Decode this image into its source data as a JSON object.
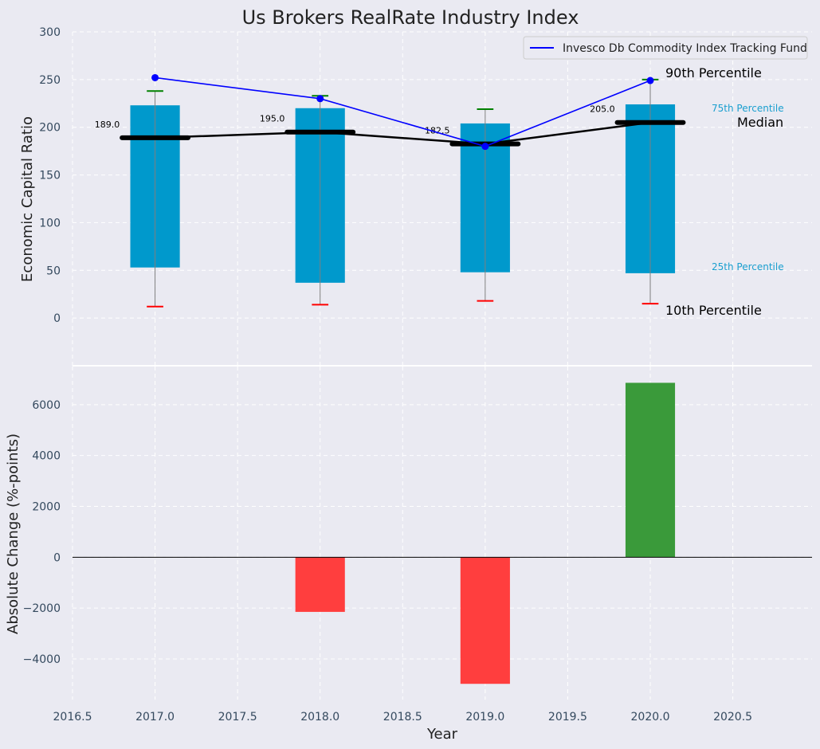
{
  "chart_data": {
    "type": "bar",
    "title": "Us Brokers RealRate Industry Index",
    "xlabel": "Year",
    "x_ticks": [
      "2016.5",
      "2017.0",
      "2017.5",
      "2018.0",
      "2018.5",
      "2019.0",
      "2019.5",
      "2020.0",
      "2020.5"
    ],
    "x_tick_values": [
      2016.5,
      2017.0,
      2017.5,
      2018.0,
      2018.5,
      2019.0,
      2019.5,
      2020.0,
      2020.5
    ],
    "xlim": [
      2016.5,
      2020.98
    ],
    "grid": true,
    "top_panel": {
      "ylabel": "Economic Capital Ratio",
      "ylim": [
        -50,
        300
      ],
      "y_ticks": [
        "0",
        "50",
        "100",
        "150",
        "200",
        "250",
        "300"
      ],
      "y_tick_values": [
        0,
        50,
        100,
        150,
        200,
        250,
        300
      ],
      "years": [
        2017,
        2018,
        2019,
        2020
      ],
      "p10": [
        12,
        14,
        18,
        15
      ],
      "p25": [
        53,
        37,
        48,
        47
      ],
      "median": [
        189.0,
        195.0,
        182.5,
        205.0
      ],
      "median_labels": [
        "189.0",
        "195.0",
        "182.5",
        "205.0"
      ],
      "p75": [
        223,
        220,
        204,
        224
      ],
      "p90": [
        238,
        233,
        219,
        250
      ],
      "fund_series": {
        "name": "Invesco Db Commodity Index Tracking Fund",
        "values": [
          252,
          230,
          180,
          249
        ]
      },
      "annotations": {
        "p90": "90th Percentile",
        "p75": "75th Percentile",
        "median": "Median",
        "p25": "25th Percentile",
        "p10": "10th Percentile"
      },
      "legend_position": "top-right"
    },
    "bottom_panel": {
      "ylabel": "Absolute Change (%-points)",
      "ylim": [
        -5600,
        7500
      ],
      "y_ticks": [
        "−4000",
        "−2000",
        "0",
        "2000",
        "4000",
        "6000"
      ],
      "y_tick_values": [
        -4000,
        -2000,
        0,
        2000,
        4000,
        6000
      ],
      "years": [
        2017,
        2018,
        2019,
        2020
      ],
      "values": [
        0,
        -2150,
        -4980,
        6860
      ]
    },
    "colors": {
      "box": "#0099cc",
      "fund": "#0000ff",
      "median_line": "#000000",
      "whisker_high": "#008000",
      "whisker_low": "#ff0000",
      "positive": "#3a9a3a",
      "negative": "#ff3e3e",
      "annotation_blue": "#1a9fcf",
      "panel_bg": "#eaeaf2"
    }
  }
}
